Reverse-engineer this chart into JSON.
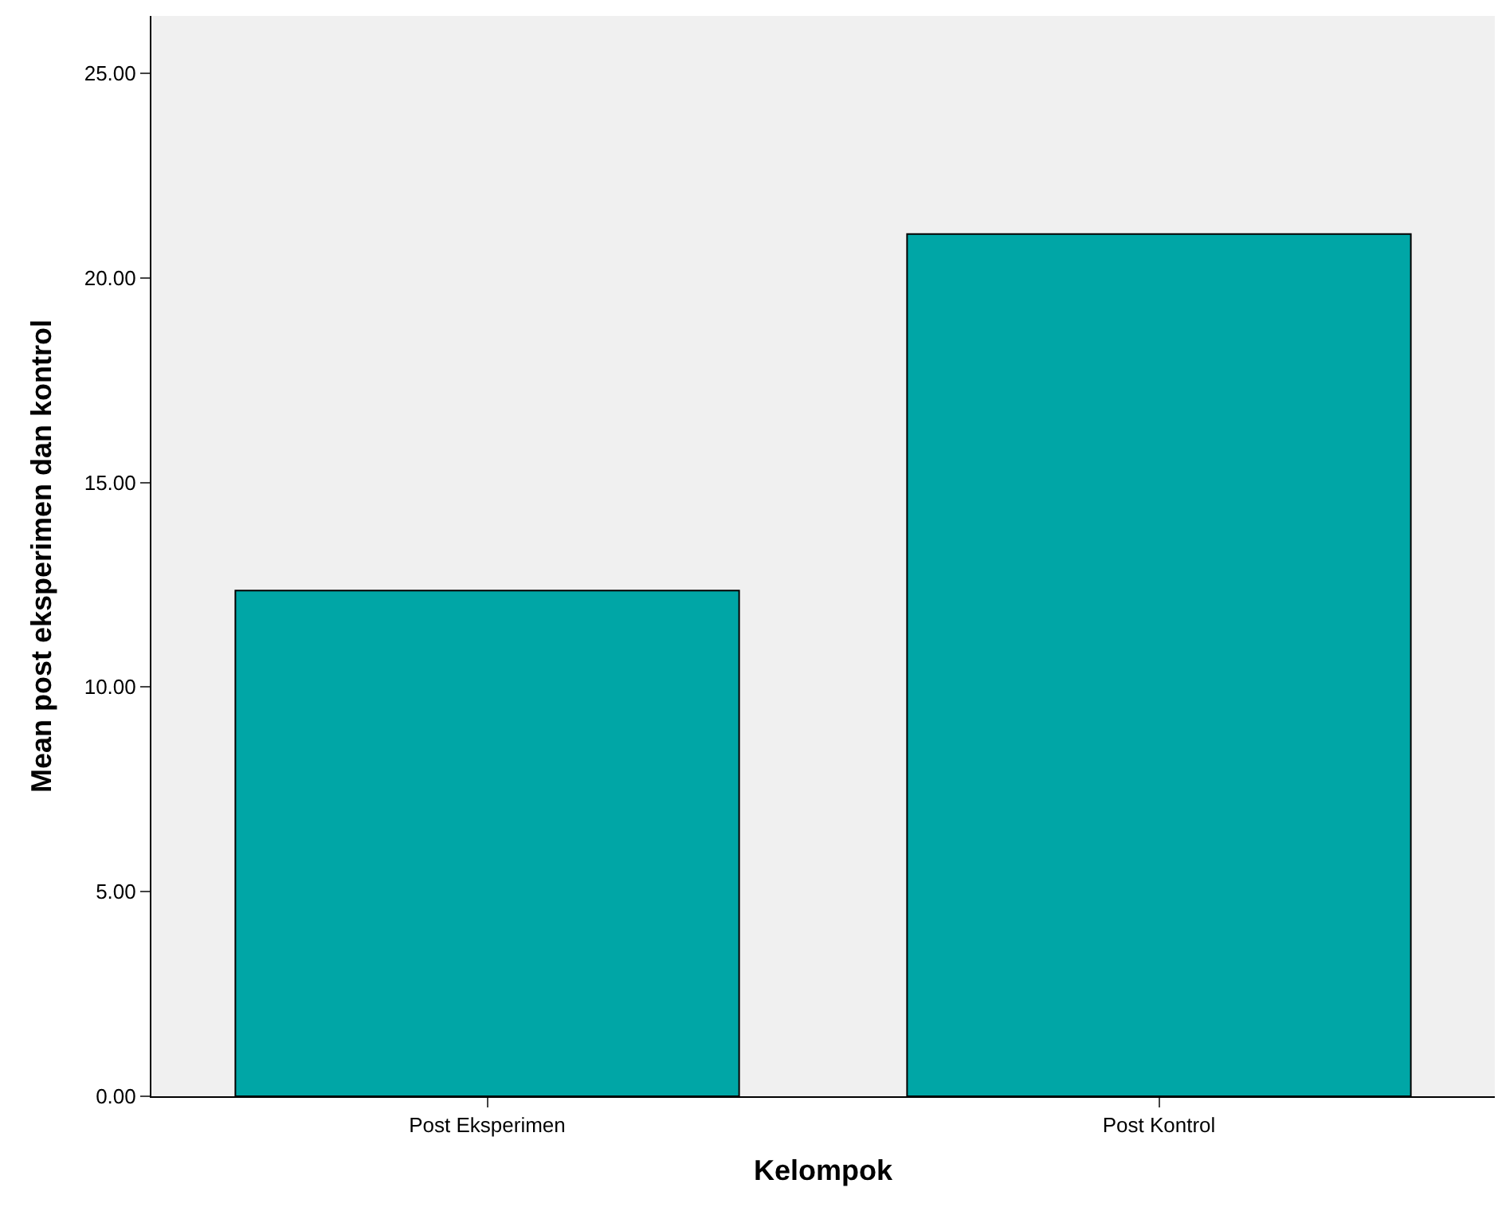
{
  "chart_data": {
    "type": "bar",
    "xlabel": "Kelompok",
    "ylabel": "Mean post eksperimen dan kontrol",
    "categories": [
      "Post Eksperimen",
      "Post Kontrol"
    ],
    "values": [
      12.36,
      21.07
    ],
    "color": "#00a6a6",
    "ylim": [
      0,
      26.4
    ],
    "yticks": [
      {
        "value": 0,
        "label": "0.00"
      },
      {
        "value": 5,
        "label": "5.00"
      },
      {
        "value": 10,
        "label": "10.00"
      },
      {
        "value": 15,
        "label": "15.00"
      },
      {
        "value": 20,
        "label": "20.00"
      },
      {
        "value": 25,
        "label": "25.00"
      }
    ],
    "grid": false
  }
}
